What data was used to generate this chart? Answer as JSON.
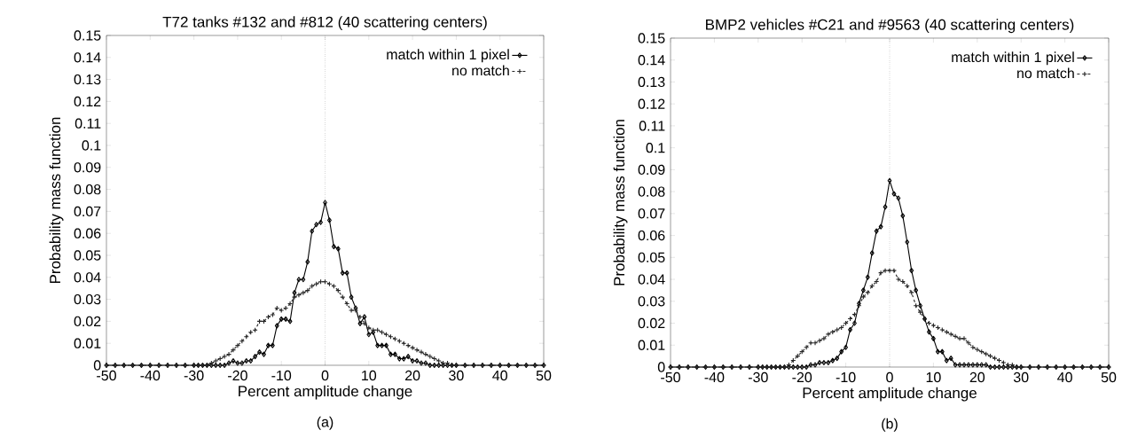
{
  "chart_data": [
    {
      "type": "line",
      "title": "T72 tanks #132 and #812 (40 scattering centers)",
      "xlabel": "Percent amplitude change",
      "ylabel": "Probability mass function",
      "annotations": [
        "(a)"
      ],
      "legend": "top right",
      "xlim": [
        -50,
        50
      ],
      "ylim": [
        0,
        0.15
      ],
      "xticks": [
        -50,
        -40,
        -30,
        -20,
        -10,
        0,
        10,
        20,
        30,
        40,
        50
      ],
      "yticks": [
        0,
        0.01,
        0.02,
        0.03,
        0.04,
        0.05,
        0.06,
        0.07,
        0.08,
        0.09,
        0.1,
        0.11,
        0.12,
        0.13,
        0.14,
        0.15
      ],
      "ref_lines": [
        {
          "axis": "x",
          "value": 0,
          "line_style": "dotted"
        }
      ],
      "x": [
        -50,
        -48,
        -46,
        -44,
        -42,
        -40,
        -38,
        -36,
        -34,
        -32,
        -30,
        -29,
        -28,
        -27,
        -26,
        -25,
        -24,
        -23,
        -22,
        -21,
        -20,
        -19,
        -18,
        -17,
        -16,
        -15,
        -14,
        -13,
        -12,
        -11,
        -10,
        -9,
        -8,
        -7,
        -6,
        -5,
        -4,
        -3,
        -2,
        -1,
        0,
        1,
        2,
        3,
        4,
        5,
        6,
        7,
        8,
        9,
        10,
        11,
        12,
        13,
        14,
        15,
        16,
        17,
        18,
        19,
        20,
        21,
        22,
        23,
        24,
        25,
        26,
        27,
        28,
        29,
        30,
        32,
        34,
        36,
        38,
        40,
        42,
        44,
        46,
        48,
        50
      ],
      "series": [
        {
          "name": "match within 1 pixel",
          "color": "#000000",
          "marker": "diamond",
          "line_style": "solid",
          "values": [
            0,
            0,
            0,
            0,
            0,
            0,
            0,
            0,
            0,
            0,
            0,
            0,
            0,
            0,
            0,
            0,
            0,
            0,
            0.001,
            0.002,
            0.001,
            0.001,
            0.002,
            0.002,
            0.004,
            0.006,
            0.005,
            0.009,
            0.009,
            0.018,
            0.021,
            0.021,
            0.02,
            0.033,
            0.039,
            0.039,
            0.047,
            0.061,
            0.064,
            0.065,
            0.074,
            0.066,
            0.054,
            0.053,
            0.042,
            0.042,
            0.031,
            0.026,
            0.019,
            0.022,
            0.014,
            0.015,
            0.009,
            0.009,
            0.009,
            0.005,
            0.005,
            0.003,
            0.003,
            0.004,
            0.002,
            0.002,
            0.001,
            0.001,
            0,
            0,
            0,
            0,
            0,
            0,
            0,
            0,
            0,
            0,
            0,
            0,
            0,
            0,
            0,
            0,
            0
          ]
        },
        {
          "name": "no match",
          "color": "#262626",
          "marker": "cross",
          "line_style": "dashed",
          "values": [
            0,
            0,
            0,
            0,
            0,
            0,
            0,
            0,
            0,
            0,
            0,
            0,
            0,
            0,
            0.001,
            0.002,
            0.003,
            0.004,
            0.005,
            0.007,
            0.009,
            0.011,
            0.013,
            0.015,
            0.016,
            0.02,
            0.02,
            0.022,
            0.023,
            0.026,
            0.025,
            0.026,
            0.028,
            0.031,
            0.032,
            0.033,
            0.034,
            0.036,
            0.037,
            0.038,
            0.038,
            0.037,
            0.036,
            0.034,
            0.031,
            0.028,
            0.025,
            0.025,
            0.022,
            0.019,
            0.017,
            0.016,
            0.016,
            0.015,
            0.014,
            0.013,
            0.012,
            0.011,
            0.01,
            0.009,
            0.008,
            0.007,
            0.006,
            0.005,
            0.004,
            0.003,
            0.002,
            0.001,
            0.001,
            0,
            0,
            0,
            0,
            0,
            0,
            0,
            0,
            0,
            0,
            0,
            0
          ]
        }
      ]
    },
    {
      "type": "line",
      "title": "BMP2 vehicles #C21 and #9563 (40 scattering centers)",
      "xlabel": "Percent amplitude change",
      "ylabel": "Probability mass function",
      "annotations": [
        "(b)"
      ],
      "legend": "top right",
      "xlim": [
        -50,
        50
      ],
      "ylim": [
        0,
        0.15
      ],
      "xticks": [
        -50,
        -40,
        -30,
        -20,
        -10,
        0,
        10,
        20,
        30,
        40,
        50
      ],
      "yticks": [
        0,
        0.01,
        0.02,
        0.03,
        0.04,
        0.05,
        0.06,
        0.07,
        0.08,
        0.09,
        0.1,
        0.11,
        0.12,
        0.13,
        0.14,
        0.15
      ],
      "ref_lines": [
        {
          "axis": "x",
          "value": 0,
          "line_style": "dotted"
        }
      ],
      "x": [
        -50,
        -48,
        -46,
        -44,
        -42,
        -40,
        -38,
        -36,
        -34,
        -32,
        -30,
        -29,
        -28,
        -27,
        -26,
        -25,
        -24,
        -23,
        -22,
        -21,
        -20,
        -19,
        -18,
        -17,
        -16,
        -15,
        -14,
        -13,
        -12,
        -11,
        -10,
        -9,
        -8,
        -7,
        -6,
        -5,
        -4,
        -3,
        -2,
        -1,
        0,
        1,
        2,
        3,
        4,
        5,
        6,
        7,
        8,
        9,
        10,
        11,
        12,
        13,
        14,
        15,
        16,
        17,
        18,
        19,
        20,
        21,
        22,
        23,
        24,
        25,
        26,
        27,
        28,
        29,
        30,
        32,
        34,
        36,
        38,
        40,
        42,
        44,
        46,
        48,
        50
      ],
      "series": [
        {
          "name": "match within 1 pixel",
          "color": "#000000",
          "marker": "diamond",
          "line_style": "solid",
          "values": [
            0,
            0,
            0,
            0,
            0,
            0,
            0,
            0,
            0,
            0,
            0,
            0,
            0,
            0,
            0,
            0,
            0,
            0,
            0,
            0,
            0,
            0,
            0.001,
            0.001,
            0.002,
            0.002,
            0.002,
            0.003,
            0.004,
            0.007,
            0.009,
            0.017,
            0.02,
            0.029,
            0.035,
            0.041,
            0.052,
            0.062,
            0.064,
            0.073,
            0.085,
            0.079,
            0.077,
            0.069,
            0.057,
            0.044,
            0.035,
            0.028,
            0.022,
            0.016,
            0.013,
            0.007,
            0.007,
            0.003,
            0.004,
            0.001,
            0.001,
            0.001,
            0.001,
            0.001,
            0.001,
            0.001,
            0.001,
            0,
            0,
            0,
            0,
            0,
            0,
            0,
            0,
            0,
            0,
            0,
            0,
            0,
            0,
            0,
            0,
            0,
            0
          ]
        },
        {
          "name": "no match",
          "color": "#262626",
          "marker": "cross",
          "line_style": "dashed",
          "values": [
            0,
            0,
            0,
            0,
            0,
            0,
            0,
            0,
            0,
            0,
            0,
            0,
            0,
            0,
            0,
            0,
            0,
            0.001,
            0.003,
            0.005,
            0.007,
            0.009,
            0.011,
            0.011,
            0.012,
            0.013,
            0.015,
            0.016,
            0.017,
            0.018,
            0.02,
            0.022,
            0.024,
            0.028,
            0.032,
            0.034,
            0.037,
            0.039,
            0.043,
            0.044,
            0.044,
            0.044,
            0.04,
            0.039,
            0.037,
            0.034,
            0.028,
            0.025,
            0.022,
            0.02,
            0.019,
            0.018,
            0.017,
            0.016,
            0.015,
            0.014,
            0.013,
            0.013,
            0.011,
            0.009,
            0.008,
            0.007,
            0.006,
            0.005,
            0.004,
            0.003,
            0.002,
            0.001,
            0.001,
            0,
            0,
            0,
            0,
            0,
            0,
            0,
            0,
            0,
            0,
            0,
            0
          ]
        }
      ]
    }
  ]
}
